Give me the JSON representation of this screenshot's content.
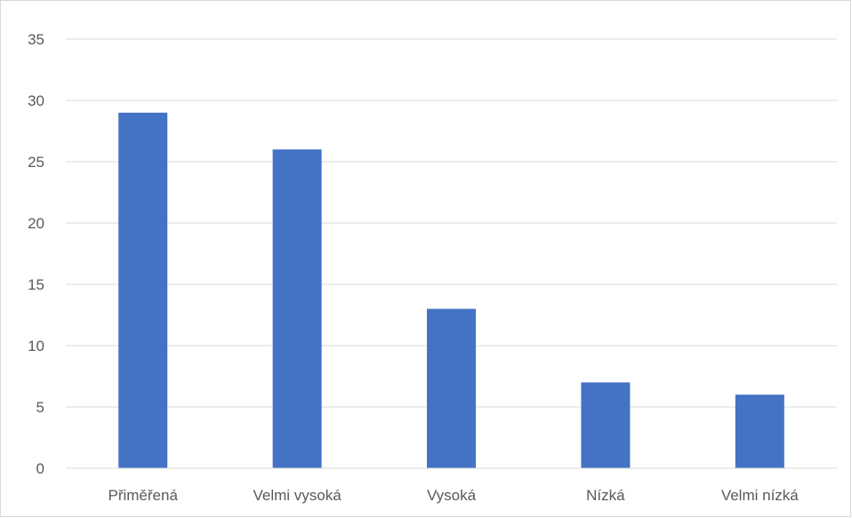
{
  "chart_data": {
    "type": "bar",
    "title": "",
    "xlabel": "",
    "ylabel": "",
    "categories": [
      "Přiměřená",
      "Velmi vysoká",
      "Vysoká",
      "Nízká",
      "Velmi nízká"
    ],
    "values": [
      29,
      26,
      13,
      7,
      6
    ],
    "ylim": [
      0,
      35
    ],
    "yticks": [
      "0",
      "5",
      "10",
      "15",
      "20",
      "25",
      "30",
      "35"
    ],
    "grid": true,
    "legend": "none",
    "bar_color": "#4472C4"
  }
}
